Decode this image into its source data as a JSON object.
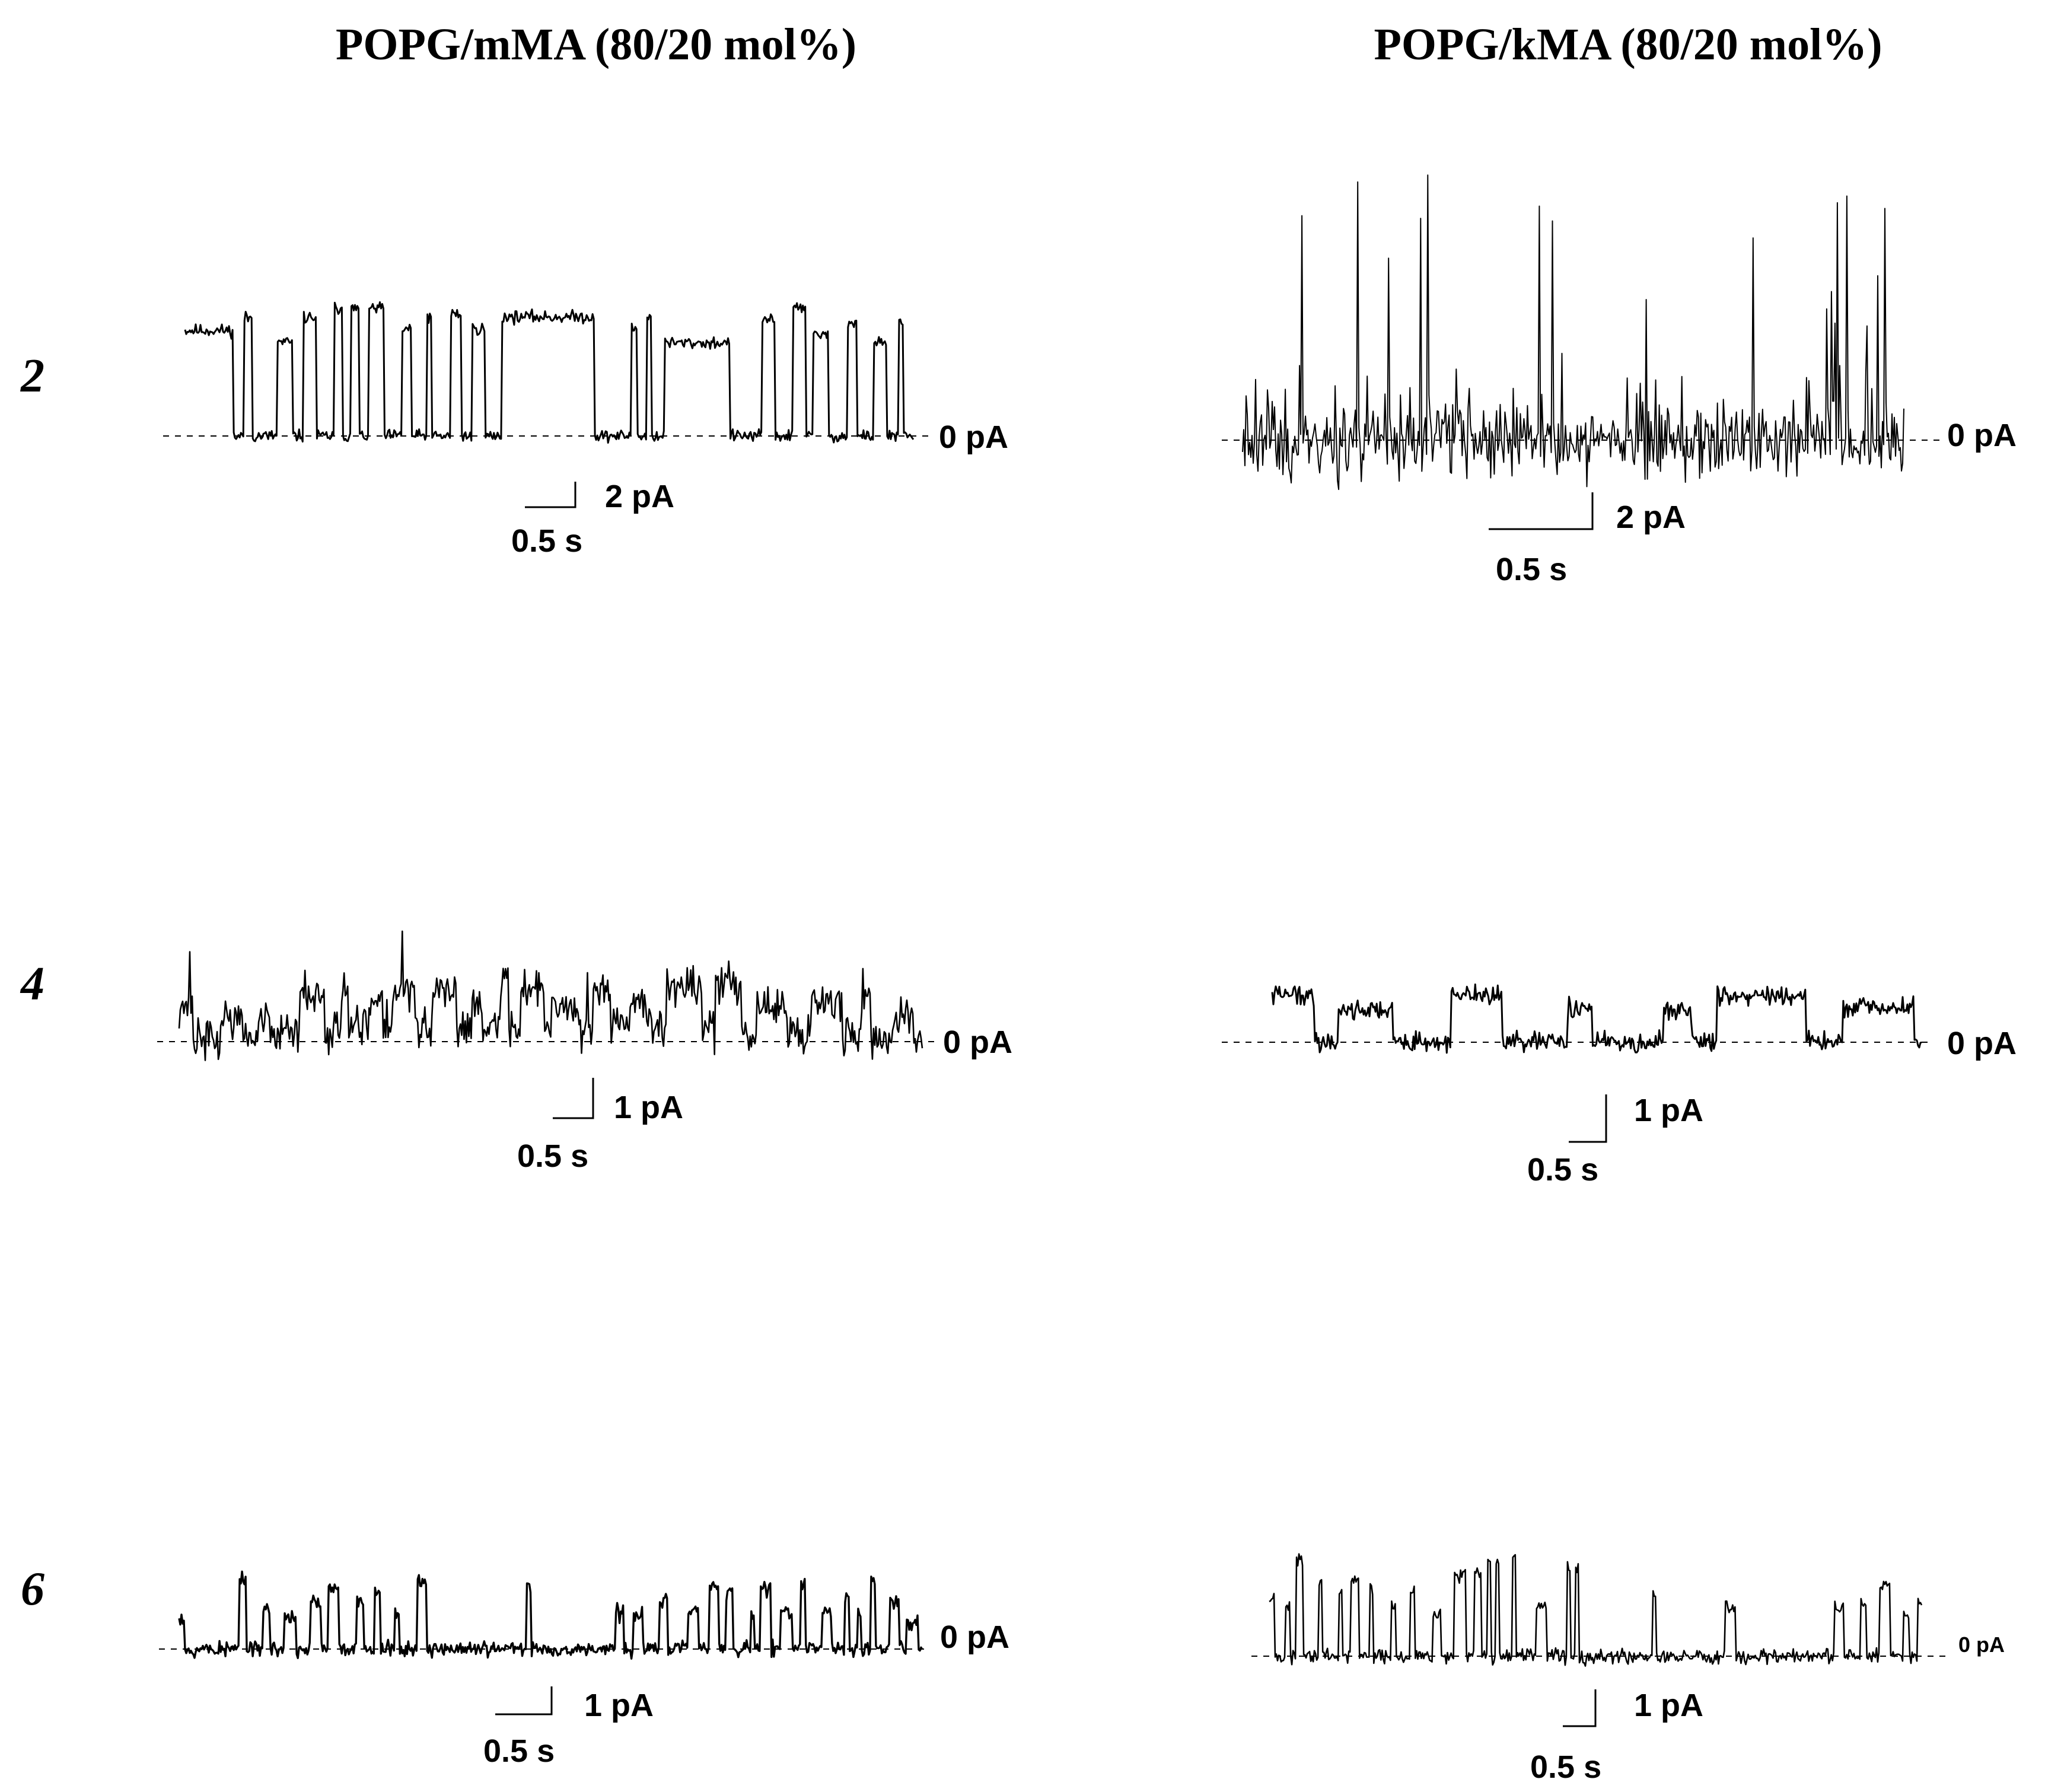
{
  "figure": {
    "columns": [
      {
        "title": "POPG/mMA (80/20 mol%)"
      },
      {
        "title": "POPG/kMA (80/20 mol%)"
      }
    ],
    "rows": [
      {
        "label": "2"
      },
      {
        "label": "4"
      },
      {
        "label": "6"
      }
    ]
  },
  "chart_data": [
    {
      "type": "line",
      "panel": "POPG/mMA row 2",
      "baseline_label": "0 pA",
      "current_scale_label": "2 pA",
      "time_scale_label": "0.5 s",
      "current_scale_pA": 2,
      "time_scale_s": 0.5,
      "pattern": "square-pulses",
      "open_level_pA": 2.6,
      "noise_pA": 0.08,
      "seed": 11
    },
    {
      "type": "line",
      "panel": "POPG/kMA row 2",
      "baseline_label": "0 pA",
      "current_scale_label": "2 pA",
      "time_scale_label": "0.5 s",
      "current_scale_pA": 2,
      "time_scale_s": 0.5,
      "pattern": "spikes",
      "open_level_pA": 3.0,
      "noise_pA": 0.35,
      "seed": 23
    },
    {
      "type": "line",
      "panel": "POPG/mMA row 4",
      "baseline_label": "0 pA",
      "current_scale_label": "1 pA",
      "time_scale_label": "0.5 s",
      "current_scale_pA": 1,
      "time_scale_s": 0.5,
      "pattern": "noisy-bursts",
      "open_level_pA": 1.1,
      "noise_pA": 0.22,
      "seed": 37
    },
    {
      "type": "line",
      "panel": "POPG/kMA row 4",
      "baseline_label": "0 pA",
      "current_scale_label": "1 pA",
      "time_scale_label": "0.5 s",
      "current_scale_pA": 1,
      "time_scale_s": 0.5,
      "pattern": "plateaus",
      "open_level_pA": 0.8,
      "noise_pA": 0.1,
      "seed": 41
    },
    {
      "type": "line",
      "panel": "POPG/mMA row 6",
      "baseline_label": "0 pA",
      "current_scale_label": "1 pA",
      "time_scale_label": "0.5 s",
      "current_scale_pA": 1,
      "time_scale_s": 0.5,
      "pattern": "bursts",
      "open_level_pA": 1.0,
      "noise_pA": 0.07,
      "seed": 53
    },
    {
      "type": "line",
      "panel": "POPG/kMA row 6",
      "baseline_label": "0 pA",
      "current_scale_label": "1 pA",
      "time_scale_label": "0.5 s",
      "current_scale_pA": 1,
      "time_scale_s": 0.5,
      "pattern": "bursts",
      "open_level_pA": 1.5,
      "noise_pA": 0.07,
      "seed": 67
    }
  ]
}
